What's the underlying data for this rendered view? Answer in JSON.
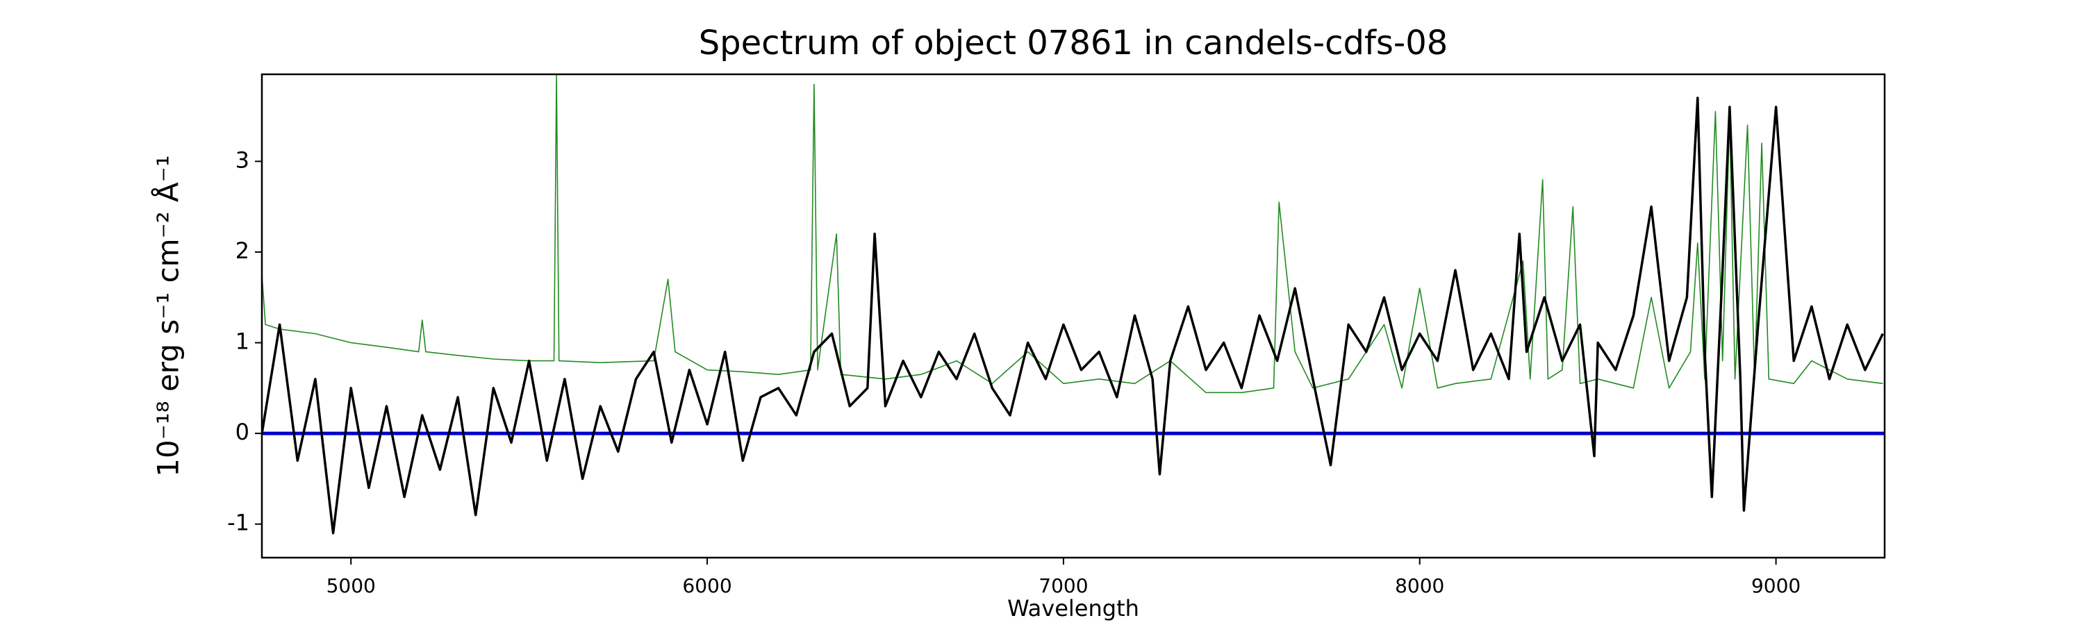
{
  "chart_data": {
    "type": "line",
    "title": "Spectrum of object 07861 in candels-cdfs-08",
    "xlabel": "Wavelength",
    "ylabel": "10⁻¹⁸ erg s⁻¹ cm⁻² Å⁻¹",
    "xlim": [
      4750,
      9305
    ],
    "ylim": [
      -1.37,
      3.96
    ],
    "xticks": [
      5000,
      6000,
      7000,
      8000,
      9000
    ],
    "yticks": [
      -1,
      0,
      1,
      2,
      3
    ],
    "grid": false,
    "series": [
      {
        "color": "#228b22",
        "width": 1.6,
        "x": [
          4750,
          4760,
          4800,
          4900,
          5000,
          5100,
          5190,
          5200,
          5210,
          5300,
          5400,
          5500,
          5570,
          5577,
          5584,
          5700,
          5850,
          5890,
          5910,
          6000,
          6100,
          6200,
          6290,
          6300,
          6310,
          6363,
          6375,
          6500,
          6600,
          6700,
          6800,
          6900,
          7000,
          7100,
          7200,
          7300,
          7400,
          7500,
          7590,
          7605,
          7650,
          7700,
          7800,
          7900,
          7950,
          8000,
          8050,
          8100,
          8200,
          8290,
          8310,
          8345,
          8360,
          8400,
          8430,
          8450,
          8500,
          8600,
          8650,
          8700,
          8760,
          8780,
          8800,
          8830,
          8850,
          8870,
          8885,
          8920,
          8940,
          8960,
          8980,
          9050,
          9100,
          9200,
          9300
        ],
        "values": [
          1.75,
          1.2,
          1.15,
          1.1,
          1.0,
          0.95,
          0.9,
          1.25,
          0.9,
          0.86,
          0.82,
          0.8,
          0.8,
          3.95,
          0.8,
          0.78,
          0.8,
          1.7,
          0.9,
          0.7,
          0.68,
          0.65,
          0.7,
          3.85,
          0.7,
          2.2,
          0.65,
          0.6,
          0.65,
          0.8,
          0.55,
          0.9,
          0.55,
          0.6,
          0.55,
          0.8,
          0.45,
          0.45,
          0.5,
          2.55,
          0.9,
          0.5,
          0.6,
          1.2,
          0.5,
          1.6,
          0.5,
          0.55,
          0.6,
          1.9,
          0.6,
          2.8,
          0.6,
          0.7,
          2.5,
          0.55,
          0.6,
          0.5,
          1.5,
          0.5,
          0.9,
          2.1,
          0.6,
          3.55,
          0.8,
          3.5,
          0.6,
          3.4,
          0.6,
          3.2,
          0.6,
          0.55,
          0.8,
          0.6,
          0.55
        ]
      },
      {
        "color": "#0000cc",
        "width": 5,
        "x": [
          4750,
          9305
        ],
        "values": [
          0,
          0
        ]
      },
      {
        "color": "#000000",
        "width": 3.5,
        "x": [
          4750,
          4800,
          4850,
          4900,
          4950,
          5000,
          5050,
          5100,
          5150,
          5200,
          5250,
          5300,
          5350,
          5400,
          5450,
          5500,
          5550,
          5600,
          5650,
          5700,
          5750,
          5800,
          5850,
          5900,
          5950,
          6000,
          6050,
          6100,
          6150,
          6200,
          6250,
          6300,
          6350,
          6400,
          6450,
          6470,
          6500,
          6550,
          6600,
          6650,
          6700,
          6750,
          6800,
          6850,
          6900,
          6950,
          7000,
          7050,
          7100,
          7150,
          7200,
          7250,
          7270,
          7300,
          7350,
          7400,
          7450,
          7500,
          7550,
          7600,
          7650,
          7700,
          7750,
          7800,
          7850,
          7900,
          7950,
          8000,
          8050,
          8100,
          8150,
          8200,
          8250,
          8280,
          8300,
          8350,
          8400,
          8450,
          8490,
          8500,
          8550,
          8600,
          8650,
          8700,
          8750,
          8780,
          8800,
          8820,
          8850,
          8870,
          8900,
          8910,
          8950,
          9000,
          9050,
          9100,
          9150,
          9200,
          9250,
          9300
        ],
        "values": [
          0.0,
          1.2,
          -0.3,
          0.6,
          -1.1,
          0.5,
          -0.6,
          0.3,
          -0.7,
          0.2,
          -0.4,
          0.4,
          -0.9,
          0.5,
          -0.1,
          0.8,
          -0.3,
          0.6,
          -0.5,
          0.3,
          -0.2,
          0.6,
          0.9,
          -0.1,
          0.7,
          0.1,
          0.9,
          -0.3,
          0.4,
          0.5,
          0.2,
          0.9,
          1.1,
          0.3,
          0.5,
          2.2,
          0.3,
          0.8,
          0.4,
          0.9,
          0.6,
          1.1,
          0.5,
          0.2,
          1.0,
          0.6,
          1.2,
          0.7,
          0.9,
          0.4,
          1.3,
          0.6,
          -0.45,
          0.8,
          1.4,
          0.7,
          1.0,
          0.5,
          1.3,
          0.8,
          1.6,
          0.6,
          -0.35,
          1.2,
          0.9,
          1.5,
          0.7,
          1.1,
          0.8,
          1.8,
          0.7,
          1.1,
          0.6,
          2.2,
          0.9,
          1.5,
          0.8,
          1.2,
          -0.25,
          1.0,
          0.7,
          1.3,
          2.5,
          0.8,
          1.5,
          3.7,
          0.9,
          -0.7,
          1.8,
          3.6,
          0.6,
          -0.85,
          1.2,
          3.6,
          0.8,
          1.4,
          0.6,
          1.2,
          0.7,
          1.1
        ]
      }
    ]
  }
}
